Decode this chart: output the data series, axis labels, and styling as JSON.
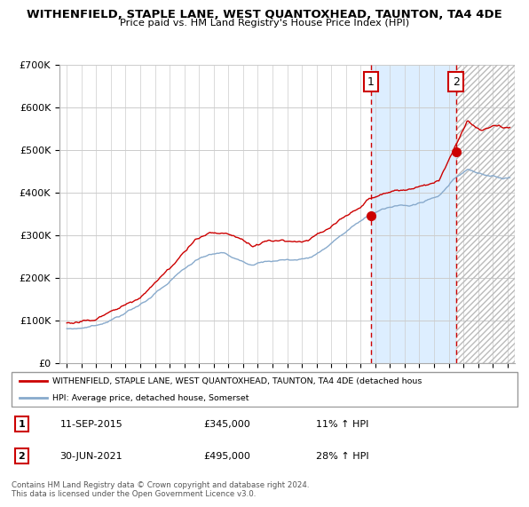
{
  "title": "WITHENFIELD, STAPLE LANE, WEST QUANTOXHEAD, TAUNTON, TA4 4DE",
  "subtitle": "Price paid vs. HM Land Registry's House Price Index (HPI)",
  "legend_line1": "WITHENFIELD, STAPLE LANE, WEST QUANTOXHEAD, TAUNTON, TA4 4DE (detached hous",
  "legend_line2": "HPI: Average price, detached house, Somerset",
  "footer": "Contains HM Land Registry data © Crown copyright and database right 2024.\nThis data is licensed under the Open Government Licence v3.0.",
  "sale1_label": "1",
  "sale1_date": "11-SEP-2015",
  "sale1_price": "£345,000",
  "sale1_hpi": "11% ↑ HPI",
  "sale1_year": 2015.7,
  "sale1_value": 345000,
  "sale2_label": "2",
  "sale2_date": "30-JUN-2021",
  "sale2_price": "£495,000",
  "sale2_hpi": "28% ↑ HPI",
  "sale2_year": 2021.5,
  "sale2_value": 495000,
  "red_color": "#cc0000",
  "blue_color": "#88aacc",
  "shaded_color": "#ddeeff",
  "yticks": [
    0,
    100000,
    200000,
    300000,
    400000,
    500000,
    600000,
    700000
  ],
  "ytick_labels": [
    "£0",
    "£100K",
    "£200K",
    "£300K",
    "£400K",
    "£500K",
    "£600K",
    "£700K"
  ],
  "xmin": 1995.0,
  "xmax": 2025.5,
  "ymin": 0,
  "ymax": 700000
}
